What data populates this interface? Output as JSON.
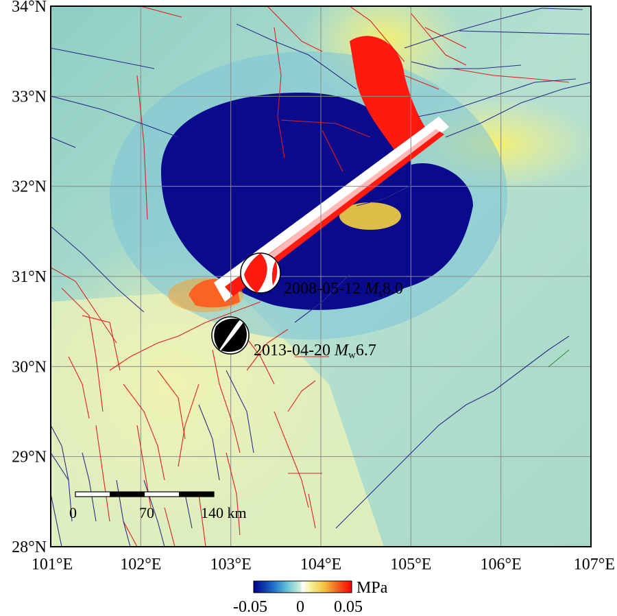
{
  "map": {
    "lat_ticks": [
      "28°N",
      "29°N",
      "30°N",
      "31°N",
      "32°N",
      "33°N",
      "34°N"
    ],
    "lon_ticks": [
      "101°E",
      "102°E",
      "103°E",
      "104°E",
      "105°E",
      "106°E",
      "107°E"
    ],
    "extent": {
      "lon": [
        101,
        107
      ],
      "lat": [
        28,
        34
      ]
    }
  },
  "events": [
    {
      "date": "2008-05-12",
      "mag_type": "M",
      "mag_sub": "s",
      "mag_value": "8.0",
      "style": "red-white beach ball"
    },
    {
      "date": "2013-04-20",
      "mag_type": "M",
      "mag_sub": "w",
      "mag_value": "6.7",
      "style": "black-white beach ball"
    }
  ],
  "scale_bar": {
    "labels": [
      "0",
      "70",
      "140 km"
    ]
  },
  "colorbar": {
    "unit": "MPa",
    "tick_labels": [
      "-0.05",
      "0",
      "0.05"
    ],
    "colors": [
      "#00008b",
      "#1e6fc8",
      "#6cc7d8",
      "#b8e4d0",
      "#ffffff",
      "#f4f29a",
      "#f6c040",
      "#f06020",
      "#ff0000"
    ]
  },
  "colors": {
    "background_field": "#a6d9c6",
    "negative_lobe": "#0a0a8c",
    "positive_lobe": "#ff1a10",
    "fault_red": "#e02020",
    "fault_blue": "#2a2a8a",
    "grid": "#8a8a8a"
  }
}
